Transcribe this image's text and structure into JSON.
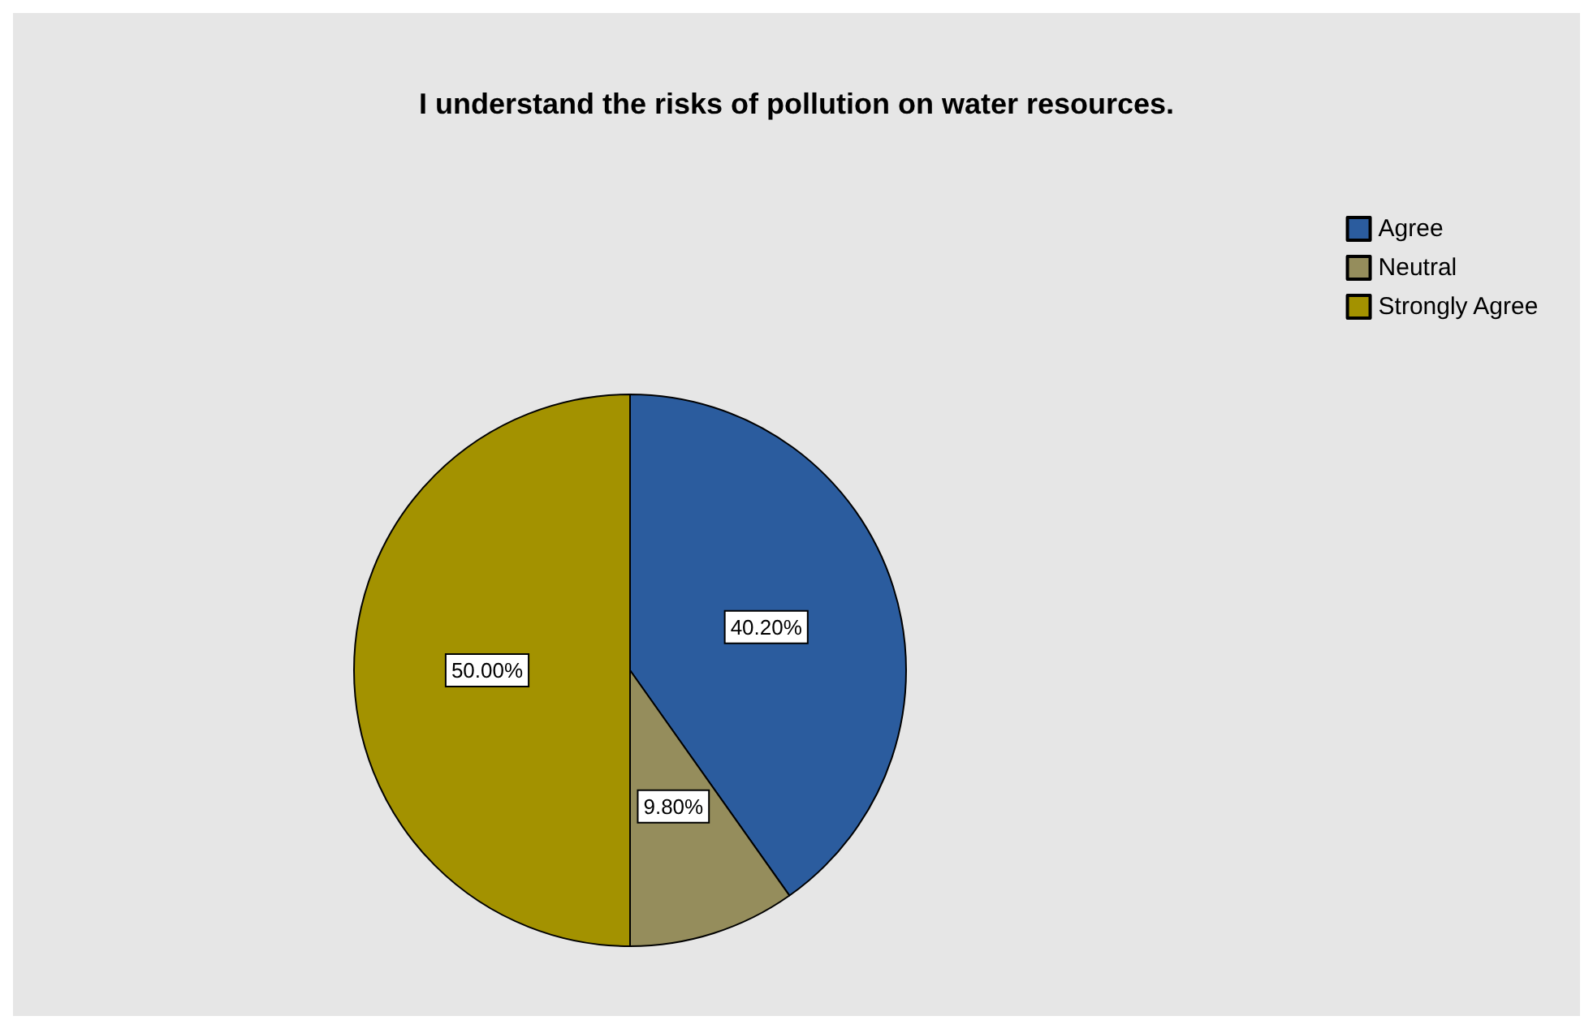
{
  "chart_data": {
    "type": "pie",
    "title": "I understand the risks of pollution on water resources.",
    "categories": [
      "Agree",
      "Neutral",
      "Strongly Agree"
    ],
    "values": [
      40.2,
      9.8,
      50.0
    ],
    "colors": [
      "#2b5c9e",
      "#958d5c",
      "#a39200"
    ],
    "value_labels": [
      "40.20%",
      "9.80%",
      "50.00%"
    ],
    "legend": "top right"
  }
}
